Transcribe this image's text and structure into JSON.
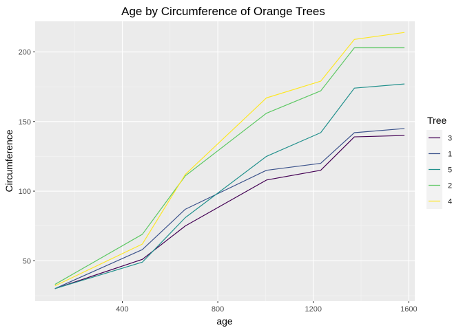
{
  "chart_data": {
    "type": "line",
    "title": "Age by Circumference of Orange Trees",
    "xlabel": "age",
    "ylabel": "Circumference",
    "xlim": [
      35,
      1625
    ],
    "ylim": [
      21,
      222
    ],
    "x_ticks": [
      400,
      800,
      1200,
      1600
    ],
    "x_tick_labels": [
      "400",
      "800",
      "1200",
      "1600"
    ],
    "y_ticks": [
      50,
      100,
      150,
      200
    ],
    "y_tick_labels": [
      "50",
      "100",
      "150",
      "200"
    ],
    "grid": true,
    "legend_title": "Tree",
    "legend_position": "right",
    "x": [
      118,
      484,
      664,
      1004,
      1231,
      1372,
      1582
    ],
    "series": [
      {
        "name": "3",
        "color": "#440154",
        "values": [
          30,
          51,
          75,
          108,
          115,
          139,
          140
        ]
      },
      {
        "name": "1",
        "color": "#3b528b",
        "values": [
          30,
          58,
          87,
          115,
          120,
          142,
          145
        ]
      },
      {
        "name": "5",
        "color": "#21908c",
        "values": [
          30,
          49,
          81,
          125,
          142,
          174,
          177
        ]
      },
      {
        "name": "2",
        "color": "#5dc863",
        "values": [
          33,
          69,
          111,
          156,
          172,
          203,
          203
        ]
      },
      {
        "name": "4",
        "color": "#fde725",
        "values": [
          32,
          62,
          112,
          167,
          179,
          209,
          214
        ]
      }
    ]
  },
  "colors": {
    "panel_background": "#ebebeb",
    "grid_major": "#ffffff",
    "grid_minor": "#f5f5f5"
  }
}
